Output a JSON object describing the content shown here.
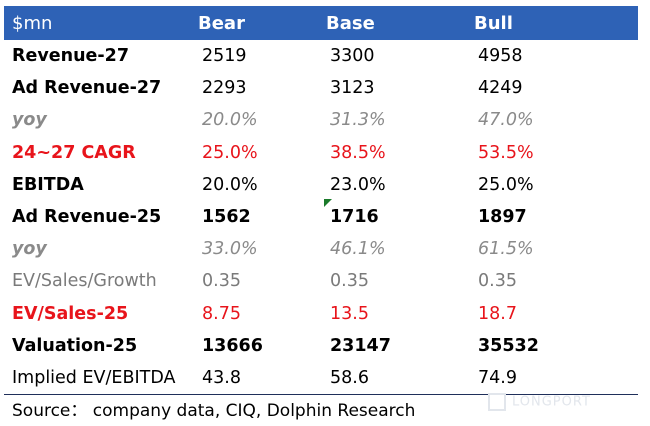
{
  "header": {
    "label": "$mn",
    "bear": "Bear",
    "base": "Base",
    "bull": "Bull"
  },
  "rows": [
    {
      "label": "Revenue-27",
      "bear": "2519",
      "base": "3300",
      "bull": "4958"
    },
    {
      "label": "Ad Revenue-27",
      "bear": "2293",
      "base": "3123",
      "bull": "4249"
    },
    {
      "label": "yoy",
      "bear": "20.0%",
      "base": "31.3%",
      "bull": "47.0%"
    },
    {
      "label": "24~27 CAGR",
      "bear": "25.0%",
      "base": "38.5%",
      "bull": "53.5%"
    },
    {
      "label": "EBITDA",
      "bear": "20.0%",
      "base": "23.0%",
      "bull": "25.0%"
    },
    {
      "label": "Ad Revenue-25",
      "bear": "1562",
      "base": "1716",
      "bull": "1897"
    },
    {
      "label": "yoy",
      "bear": "33.0%",
      "base": "46.1%",
      "bull": "61.5%"
    },
    {
      "label": "EV/Sales/Growth",
      "bear": "0.35",
      "base": "0.35",
      "bull": "0.35"
    },
    {
      "label": "EV/Sales-25",
      "bear": "8.75",
      "base": "13.5",
      "bull": "18.7"
    },
    {
      "label": "Valuation-25",
      "bear": "13666",
      "base": "23147",
      "bull": "35532"
    },
    {
      "label": "Implied EV/EBITDA",
      "bear": "43.8",
      "base": "58.6",
      "bull": "74.9"
    }
  ],
  "source": "Source： company data, CIQ, Dolphin Research",
  "watermark": "LONGPORT",
  "colors": {
    "header_bg": "#2e62b6",
    "red": "#e8141b",
    "gray": "#8a8a8a"
  }
}
